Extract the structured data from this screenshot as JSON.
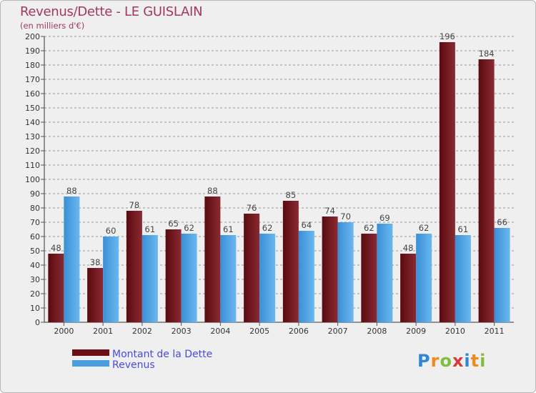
{
  "chart_data": {
    "type": "bar",
    "title": "Revenus/Dette - LE GUISLAIN",
    "subtitle": "(en milliers d'€)",
    "categories": [
      "2000",
      "2001",
      "2002",
      "2003",
      "2004",
      "2005",
      "2006",
      "2007",
      "2008",
      "2009",
      "2010",
      "2011"
    ],
    "series": [
      {
        "name": "Montant de la Dette",
        "values": [
          48,
          38,
          78,
          65,
          88,
          76,
          85,
          74,
          62,
          48,
          196,
          184
        ],
        "color": "#6b0f15"
      },
      {
        "name": "Revenus",
        "values": [
          88,
          60,
          61,
          62,
          61,
          62,
          64,
          70,
          69,
          62,
          61,
          66
        ],
        "color": "#4a9fe0"
      }
    ],
    "ylim": [
      0,
      200
    ],
    "ytick_step": 10,
    "grid": true,
    "legend": "bottom-left"
  },
  "logo": {
    "letters": [
      "P",
      "r",
      "o",
      "x",
      "i",
      "t",
      "i"
    ],
    "colors": [
      "#2e86d4",
      "#f08a1c",
      "#7fbf3f",
      "#d63b3b",
      "#2e86d4",
      "#f08a1c",
      "#7fbf3f"
    ]
  },
  "colors": {
    "title": "#a23a55",
    "grid": "#999999",
    "background": "#efefef"
  }
}
